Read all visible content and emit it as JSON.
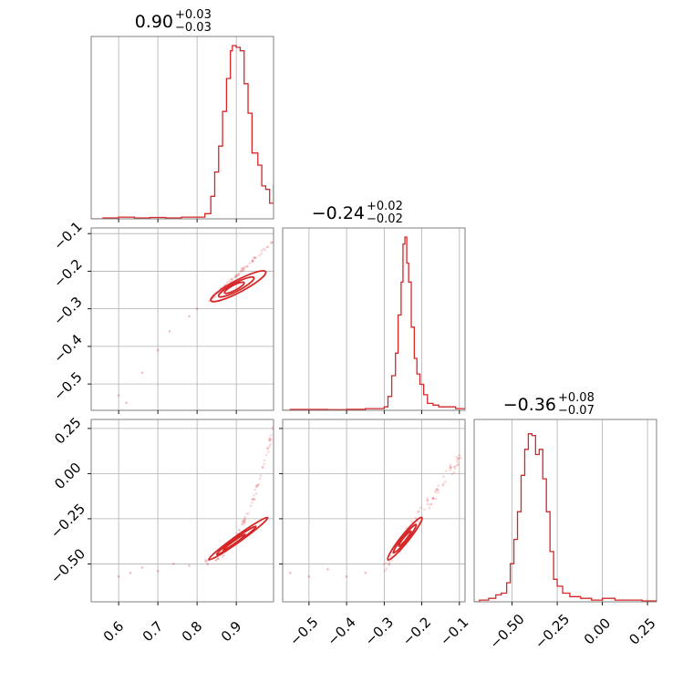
{
  "chart_data": {
    "type": "scatter",
    "subtype": "corner-plot",
    "color": "#d62728",
    "params": [
      {
        "title_main": "0.90",
        "title_up": "+0.03",
        "title_down": "−0.03",
        "range": [
          0.53,
          0.995
        ],
        "ticks": [
          0.6,
          0.7,
          0.8,
          0.9
        ],
        "ticklabels": [
          "0.6",
          "0.7",
          "0.8",
          "0.9"
        ],
        "hist": [
          [
            0.53,
            0
          ],
          [
            0.56,
            0.005
          ],
          [
            0.6,
            0.01
          ],
          [
            0.64,
            0.005
          ],
          [
            0.68,
            0.008
          ],
          [
            0.72,
            0.005
          ],
          [
            0.76,
            0.01
          ],
          [
            0.8,
            0.01
          ],
          [
            0.82,
            0.03
          ],
          [
            0.835,
            0.13
          ],
          [
            0.845,
            0.27
          ],
          [
            0.855,
            0.42
          ],
          [
            0.865,
            0.62
          ],
          [
            0.875,
            0.81
          ],
          [
            0.885,
            0.97
          ],
          [
            0.89,
            1.0
          ],
          [
            0.9,
            0.99
          ],
          [
            0.91,
            0.97
          ],
          [
            0.92,
            0.78
          ],
          [
            0.93,
            0.61
          ],
          [
            0.94,
            0.38
          ],
          [
            0.955,
            0.31
          ],
          [
            0.965,
            0.19
          ],
          [
            0.975,
            0.17
          ],
          [
            0.985,
            0.09
          ],
          [
            0.995,
            0.2
          ]
        ]
      },
      {
        "title_main": "−0.24",
        "title_up": "+0.02",
        "title_down": "−0.02",
        "range": [
          -0.57,
          -0.085
        ],
        "ticks": [
          -0.5,
          -0.4,
          -0.3,
          -0.2,
          -0.1
        ],
        "ticklabels": [
          "−0.5",
          "−0.4",
          "−0.3",
          "−0.2",
          "−0.1"
        ],
        "hist": [
          [
            -0.57,
            0
          ],
          [
            -0.55,
            0.005
          ],
          [
            -0.5,
            0.005
          ],
          [
            -0.45,
            0.004
          ],
          [
            -0.4,
            0.006
          ],
          [
            -0.35,
            0.01
          ],
          [
            -0.3,
            0.02
          ],
          [
            -0.29,
            0.08
          ],
          [
            -0.28,
            0.2
          ],
          [
            -0.27,
            0.33
          ],
          [
            -0.263,
            0.55
          ],
          [
            -0.255,
            0.74
          ],
          [
            -0.25,
            0.96
          ],
          [
            -0.245,
            1.0
          ],
          [
            -0.24,
            0.85
          ],
          [
            -0.235,
            0.74
          ],
          [
            -0.228,
            0.48
          ],
          [
            -0.22,
            0.3
          ],
          [
            -0.213,
            0.21
          ],
          [
            -0.205,
            0.15
          ],
          [
            -0.195,
            0.09
          ],
          [
            -0.185,
            0.04
          ],
          [
            -0.17,
            0.03
          ],
          [
            -0.155,
            0.02
          ],
          [
            -0.13,
            0.02
          ],
          [
            -0.11,
            0.01
          ]
        ]
      },
      {
        "title_main": "−0.36",
        "title_up": "+0.08",
        "title_down": "−0.07",
        "range": [
          -0.71,
          0.3
        ],
        "ticks": [
          -0.5,
          -0.25,
          0.0,
          0.25
        ],
        "ticklabels": [
          "−0.50",
          "−0.25",
          "0.00",
          "0.25"
        ],
        "hist": [
          [
            -0.71,
            0
          ],
          [
            -0.68,
            0.01
          ],
          [
            -0.63,
            0.02
          ],
          [
            -0.59,
            0.04
          ],
          [
            -0.56,
            0.05
          ],
          [
            -0.53,
            0.11
          ],
          [
            -0.51,
            0.22
          ],
          [
            -0.49,
            0.36
          ],
          [
            -0.47,
            0.52
          ],
          [
            -0.45,
            0.73
          ],
          [
            -0.43,
            0.88
          ],
          [
            -0.41,
            0.97
          ],
          [
            -0.39,
            0.96
          ],
          [
            -0.37,
            0.85
          ],
          [
            -0.35,
            0.88
          ],
          [
            -0.33,
            0.71
          ],
          [
            -0.31,
            0.52
          ],
          [
            -0.29,
            0.29
          ],
          [
            -0.27,
            0.13
          ],
          [
            -0.25,
            0.09
          ],
          [
            -0.22,
            0.05
          ],
          [
            -0.18,
            0.03
          ],
          [
            -0.12,
            0.02
          ],
          [
            -0.06,
            0.01
          ],
          [
            0.0,
            0.02
          ],
          [
            0.07,
            0.01
          ],
          [
            0.15,
            0.01
          ],
          [
            0.22,
            0.005
          ],
          [
            0.28,
            0.005
          ]
        ]
      }
    ],
    "pairs": [
      {
        "x": 0,
        "y": 1,
        "contours": [
          {
            "cx": 0.905,
            "cy": -0.24,
            "rx": 0.07,
            "ry": 0.016,
            "slope": 0.55
          },
          {
            "cx": 0.9,
            "cy": -0.242,
            "rx": 0.045,
            "ry": 0.011,
            "slope": 0.55
          },
          {
            "cx": 0.895,
            "cy": -0.244,
            "rx": 0.025,
            "ry": 0.007,
            "slope": 0.55
          }
        ],
        "scatter": {
          "x0": 0.83,
          "x1": 0.995,
          "y0": -0.28,
          "y1": -0.12,
          "n": 70,
          "spread": 0.012,
          "tail": [
            [
              0.6,
              -0.53
            ],
            [
              0.62,
              -0.55
            ],
            [
              0.66,
              -0.47
            ],
            [
              0.7,
              -0.41
            ],
            [
              0.73,
              -0.36
            ],
            [
              0.78,
              -0.32
            ],
            [
              0.8,
              -0.3
            ]
          ]
        }
      },
      {
        "x": 0,
        "y": 2,
        "contours": [
          {
            "cx": 0.905,
            "cy": -0.36,
            "rx": 0.075,
            "ry": 0.018,
            "slope": 1.55
          },
          {
            "cx": 0.9,
            "cy": -0.37,
            "rx": 0.05,
            "ry": 0.012,
            "slope": 1.55
          },
          {
            "cx": 0.895,
            "cy": -0.38,
            "rx": 0.028,
            "ry": 0.007,
            "slope": 1.55
          }
        ],
        "scatter": {
          "x0": 0.82,
          "x1": 0.995,
          "y0": -0.49,
          "y1": 0.27,
          "n": 80,
          "spread": 0.02,
          "curve": true,
          "tail": [
            [
              0.6,
              -0.57
            ],
            [
              0.63,
              -0.55
            ],
            [
              0.66,
              -0.52
            ],
            [
              0.7,
              -0.54
            ],
            [
              0.74,
              -0.5
            ],
            [
              0.78,
              -0.51
            ]
          ]
        }
      },
      {
        "x": 1,
        "y": 2,
        "contours": [
          {
            "cx": -0.245,
            "cy": -0.36,
            "rx": 0.045,
            "ry": 0.022,
            "slope": 2.6
          },
          {
            "cx": -0.245,
            "cy": -0.36,
            "rx": 0.03,
            "ry": 0.014,
            "slope": 2.6
          },
          {
            "cx": -0.245,
            "cy": -0.36,
            "rx": 0.016,
            "ry": 0.008,
            "slope": 2.6
          }
        ],
        "scatter": {
          "x0": -0.3,
          "x1": -0.09,
          "y0": -0.52,
          "y1": 0.12,
          "n": 80,
          "spread": 0.04,
          "tail": [
            [
              -0.55,
              -0.55
            ],
            [
              -0.5,
              -0.57
            ],
            [
              -0.45,
              -0.53
            ],
            [
              -0.4,
              -0.57
            ],
            [
              -0.35,
              -0.55
            ]
          ]
        }
      }
    ]
  }
}
